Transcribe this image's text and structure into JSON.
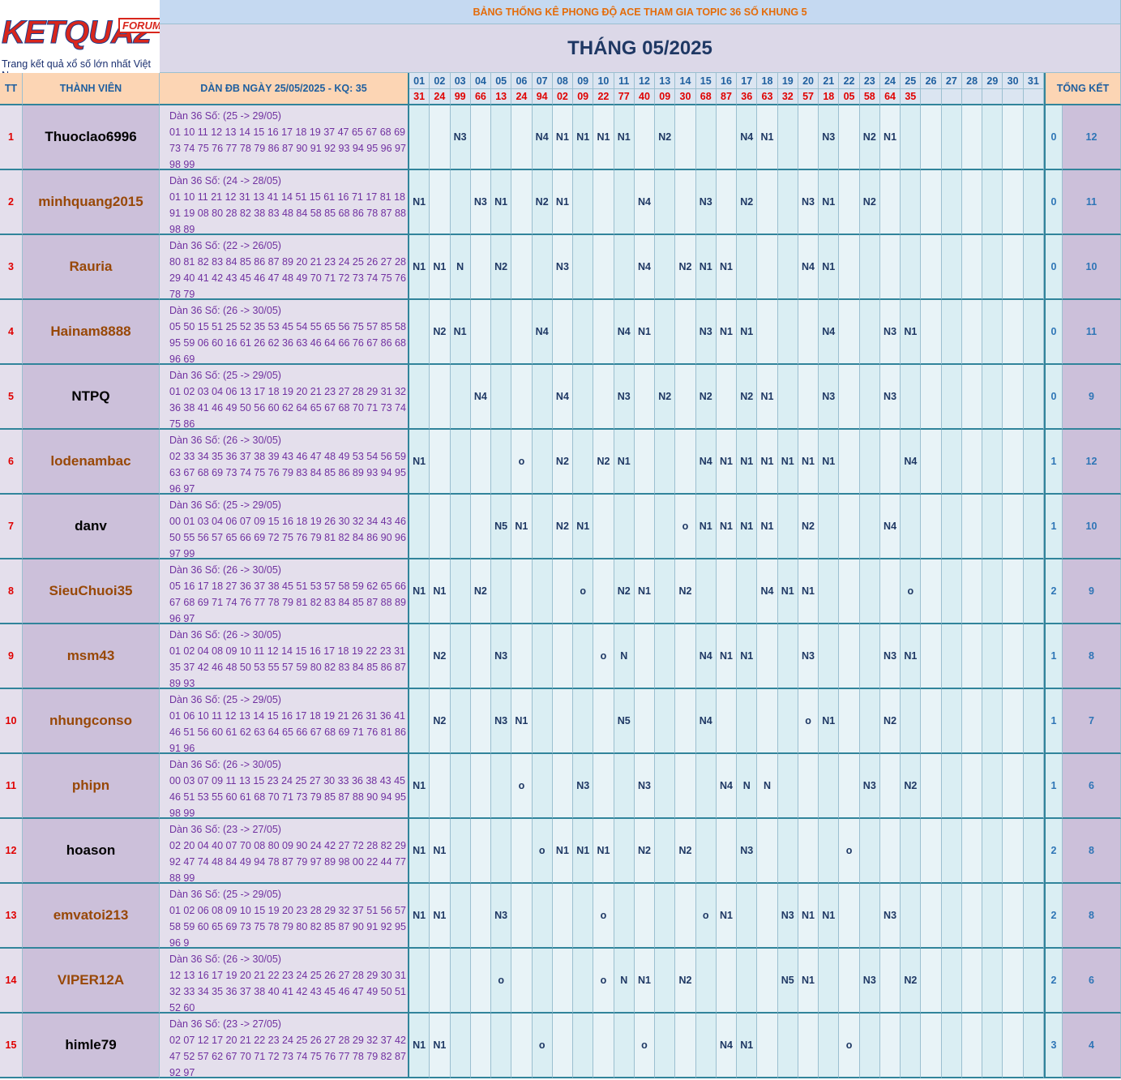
{
  "logo": {
    "brand": "KETQUA2",
    "badge": "FORUM",
    "tagline": "Trang kết quả xổ số lớn nhất Việt Nam"
  },
  "header": {
    "banner": "BẢNG THỐNG KÊ PHONG ĐỘ ACE THAM GIA TOPIC 36 SỐ KHUNG 5",
    "month": "THÁNG 05/2025",
    "col_tt": "TT",
    "col_member": "THÀNH VIÊN",
    "col_dan": "DÀN ĐB NGÀY 25/05/2025 - KQ: 35",
    "col_total": "TỔNG KẾT"
  },
  "days": [
    "01",
    "02",
    "03",
    "04",
    "05",
    "06",
    "07",
    "08",
    "09",
    "10",
    "11",
    "12",
    "13",
    "14",
    "15",
    "16",
    "17",
    "18",
    "19",
    "20",
    "21",
    "22",
    "23",
    "24",
    "25",
    "26",
    "27",
    "28",
    "29",
    "30",
    "31"
  ],
  "results": [
    "31",
    "24",
    "99",
    "66",
    "13",
    "24",
    "94",
    "02",
    "09",
    "22",
    "77",
    "40",
    "09",
    "30",
    "68",
    "87",
    "36",
    "63",
    "32",
    "57",
    "18",
    "05",
    "58",
    "64",
    "35",
    null,
    null,
    null,
    null,
    null,
    null
  ],
  "members": [
    {
      "tt": 1,
      "name": "Thuoclao6996",
      "name_color": "#000000",
      "dan": [
        "Dàn 36 Số: (25 -> 29/05)",
        "01 10 11 12 13 14 15 16 17 18 19 37 47 65 67 68 69",
        "73 74 75 76 77 78 79 86 87 90 91 92 93 94 95 96 97",
        "98 99"
      ],
      "marks": [
        null,
        null,
        "N3",
        null,
        null,
        null,
        "N4",
        "N1",
        "N1",
        "N1",
        "N1",
        null,
        "N2",
        null,
        null,
        null,
        "N4",
        "N1",
        null,
        null,
        "N3",
        null,
        "N2",
        "N1",
        null,
        null,
        null,
        null,
        null,
        null,
        null
      ],
      "total_a": 0,
      "total_b": 12
    },
    {
      "tt": 2,
      "name": "minhquang2015",
      "name_color": "#984807",
      "dan": [
        "Dàn 36 Số: (24 -> 28/05)",
        "01 10 11 21 12 31 13 41 14 51 15 61 16 71 17 81 18",
        "91 19 08 80 28 82 38 83 48 84 58 85 68 86 78 87 88",
        "98 89"
      ],
      "marks": [
        "N1",
        null,
        null,
        "N3",
        "N1",
        null,
        "N2",
        "N1",
        null,
        null,
        null,
        "N4",
        null,
        null,
        "N3",
        null,
        "N2",
        null,
        null,
        "N3",
        "N1",
        null,
        "N2",
        null,
        null,
        null,
        null,
        null,
        null,
        null,
        null
      ],
      "total_a": 0,
      "total_b": 11
    },
    {
      "tt": 3,
      "name": "Rauria",
      "name_color": "#984807",
      "dan": [
        "Dàn 36 Số: (22 -> 26/05)",
        "80 81 82 83 84 85 86 87 89 20 21 23 24 25 26 27 28",
        "29 40 41 42 43 45 46 47 48 49 70 71 72 73 74 75 76",
        "78 79"
      ],
      "marks": [
        "N1",
        "N1",
        "N",
        null,
        "N2",
        null,
        null,
        "N3",
        null,
        null,
        null,
        "N4",
        null,
        "N2",
        "N1",
        "N1",
        null,
        null,
        null,
        "N4",
        "N1",
        null,
        null,
        null,
        null,
        null,
        null,
        null,
        null,
        null,
        null
      ],
      "total_a": 0,
      "total_b": 10
    },
    {
      "tt": 4,
      "name": "Hainam8888",
      "name_color": "#984807",
      "dan": [
        "Dàn 36 Số: (26 -> 30/05)",
        "05 50 15 51 25 52 35 53 45 54 55 65 56 75 57 85 58",
        "95 59 06 60 16 61 26 62 36 63 46 64 66 76 67 86 68",
        "96 69"
      ],
      "marks": [
        null,
        "N2",
        "N1",
        null,
        null,
        null,
        "N4",
        null,
        null,
        null,
        "N4",
        "N1",
        null,
        null,
        "N3",
        "N1",
        "N1",
        null,
        null,
        null,
        "N4",
        null,
        null,
        "N3",
        "N1",
        null,
        null,
        null,
        null,
        null,
        null
      ],
      "total_a": 0,
      "total_b": 11
    },
    {
      "tt": 5,
      "name": "NTPQ",
      "name_color": "#000000",
      "dan": [
        "Dàn 36 Số: (25 -> 29/05)",
        "01 02 03 04 06 13 17 18 19 20 21 23 27 28 29 31 32",
        "36 38 41 46 49 50 56 60 62 64 65 67 68 70 71 73 74",
        "75 86"
      ],
      "marks": [
        null,
        null,
        null,
        "N4",
        null,
        null,
        null,
        "N4",
        null,
        null,
        "N3",
        null,
        "N2",
        null,
        "N2",
        null,
        "N2",
        "N1",
        null,
        null,
        "N3",
        null,
        null,
        "N3",
        null,
        null,
        null,
        null,
        null,
        null,
        null
      ],
      "total_a": 0,
      "total_b": 9
    },
    {
      "tt": 6,
      "name": "lodenambac",
      "name_color": "#984807",
      "dan": [
        "Dàn 36 Số: (26 -> 30/05)",
        "02 33 34 35 36 37 38 39 43 46 47 48 49 53 54 56 59",
        "63 67 68 69 73 74 75 76 79 83 84 85 86 89 93 94 95",
        "96 97"
      ],
      "marks": [
        "N1",
        null,
        null,
        null,
        null,
        "o",
        null,
        "N2",
        null,
        "N2",
        "N1",
        null,
        null,
        null,
        "N4",
        "N1",
        "N1",
        "N1",
        "N1",
        "N1",
        "N1",
        null,
        null,
        null,
        "N4",
        null,
        null,
        null,
        null,
        null,
        null
      ],
      "total_a": 1,
      "total_b": 12
    },
    {
      "tt": 7,
      "name": "danv",
      "name_color": "#000000",
      "dan": [
        "Dàn 36 Số: (25 -> 29/05)",
        "00 01 03 04 06 07 09 15 16 18 19 26 30 32 34 43 46",
        "50 55 56 57 65 66 69 72 75 76 79 81 82 84 86 90 96",
        "97 99"
      ],
      "marks": [
        null,
        null,
        null,
        null,
        "N5",
        "N1",
        null,
        "N2",
        "N1",
        null,
        null,
        null,
        null,
        "o",
        "N1",
        "N1",
        "N1",
        "N1",
        null,
        "N2",
        null,
        null,
        null,
        "N4",
        null,
        null,
        null,
        null,
        null,
        null,
        null
      ],
      "total_a": 1,
      "total_b": 10
    },
    {
      "tt": 8,
      "name": "SieuChuoi35",
      "name_color": "#984807",
      "dan": [
        "Dàn 36 Số: (26 -> 30/05)",
        "05 16 17 18 27 36 37 38 45 51 53 57 58 59 62 65 66",
        "67 68 69 71 74 76 77 78 79 81 82 83 84 85 87 88 89",
        "96 97"
      ],
      "marks": [
        "N1",
        "N1",
        null,
        "N2",
        null,
        null,
        null,
        null,
        "o",
        null,
        "N2",
        "N1",
        null,
        "N2",
        null,
        null,
        null,
        "N4",
        "N1",
        "N1",
        null,
        null,
        null,
        null,
        "o",
        null,
        null,
        null,
        null,
        null,
        null
      ],
      "total_a": 2,
      "total_b": 9
    },
    {
      "tt": 9,
      "name": "msm43",
      "name_color": "#984807",
      "dan": [
        "Dàn 36 Số: (26 -> 30/05)",
        "01 02 04 08 09 10 11 12 14 15 16 17 18 19 22 23 31",
        "35 37 42 46 48 50 53 55 57 59 80 82 83 84 85 86 87",
        "89 93"
      ],
      "marks": [
        null,
        "N2",
        null,
        null,
        "N3",
        null,
        null,
        null,
        null,
        "o",
        "N",
        null,
        null,
        null,
        "N4",
        "N1",
        "N1",
        null,
        null,
        "N3",
        null,
        null,
        null,
        "N3",
        "N1",
        null,
        null,
        null,
        null,
        null,
        null
      ],
      "total_a": 1,
      "total_b": 8
    },
    {
      "tt": 10,
      "name": "nhungconso",
      "name_color": "#984807",
      "dan": [
        "Dàn 36 Số: (25 -> 29/05)",
        "01 06 10 11 12 13 14 15 16 17 18 19 21 26 31 36 41",
        "46 51 56 60 61 62 63 64 65 66 67 68 69 71 76 81 86",
        "91 96"
      ],
      "marks": [
        null,
        "N2",
        null,
        null,
        "N3",
        "N1",
        null,
        null,
        null,
        null,
        "N5",
        null,
        null,
        null,
        "N4",
        null,
        null,
        null,
        null,
        "o",
        "N1",
        null,
        null,
        "N2",
        null,
        null,
        null,
        null,
        null,
        null,
        null
      ],
      "total_a": 1,
      "total_b": 7
    },
    {
      "tt": 11,
      "name": "phipn",
      "name_color": "#984807",
      "dan": [
        "Dàn 36 Số: (26 -> 30/05)",
        "00 03 07 09 11 13 15 23 24 25 27 30 33 36 38 43 45",
        "46 51 53 55 60 61 68 70 71 73 79 85 87 88 90 94 95",
        "98 99"
      ],
      "marks": [
        "N1",
        null,
        null,
        null,
        null,
        "o",
        null,
        null,
        "N3",
        null,
        null,
        "N3",
        null,
        null,
        null,
        "N4",
        "N",
        "N",
        null,
        null,
        null,
        null,
        "N3",
        null,
        "N2",
        null,
        null,
        null,
        null,
        null,
        null
      ],
      "total_a": 1,
      "total_b": 6
    },
    {
      "tt": 12,
      "name": "hoason",
      "name_color": "#000000",
      "dan": [
        "Dàn 36 Số: (23 -> 27/05)",
        "02 20 04 40 07 70 08 80 09 90 24 42 27 72 28 82 29",
        "92 47 74 48 84 49 94 78 87 79 97 89 98 00 22 44 77",
        "88 99"
      ],
      "marks": [
        "N1",
        "N1",
        null,
        null,
        null,
        null,
        "o",
        "N1",
        "N1",
        "N1",
        null,
        "N2",
        null,
        "N2",
        null,
        null,
        "N3",
        null,
        null,
        null,
        null,
        "o",
        null,
        null,
        null,
        null,
        null,
        null,
        null,
        null,
        null
      ],
      "total_a": 2,
      "total_b": 8
    },
    {
      "tt": 13,
      "name": "emvatoi213",
      "name_color": "#984807",
      "dan": [
        "Dàn 36 Số: (25 -> 29/05)",
        "01 02 06 08 09 10 15 19 20 23 28 29 32 37 51 56 57",
        "58 59 60 65 69 73 75 78 79 80 82 85 87 90 91 92 95",
        "96 9"
      ],
      "marks": [
        "N1",
        "N1",
        null,
        null,
        "N3",
        null,
        null,
        null,
        null,
        "o",
        null,
        null,
        null,
        null,
        "o",
        "N1",
        null,
        null,
        "N3",
        "N1",
        "N1",
        null,
        null,
        "N3",
        null,
        null,
        null,
        null,
        null,
        null,
        null
      ],
      "total_a": 2,
      "total_b": 8
    },
    {
      "tt": 14,
      "name": "VIPER12A",
      "name_color": "#984807",
      "dan": [
        "Dàn 36 Số: (26 -> 30/05)",
        "12 13 16 17 19 20 21 22 23 24 25 26 27 28 29 30 31",
        "32 33 34 35 36 37 38 40 41 42 43 45 46 47 49 50 51",
        "52 60"
      ],
      "marks": [
        null,
        null,
        null,
        null,
        "o",
        null,
        null,
        null,
        null,
        "o",
        "N",
        "N1",
        null,
        "N2",
        null,
        null,
        null,
        null,
        "N5",
        "N1",
        null,
        null,
        "N3",
        null,
        "N2",
        null,
        null,
        null,
        null,
        null,
        null
      ],
      "total_a": 2,
      "total_b": 6
    },
    {
      "tt": 15,
      "name": "himle79",
      "name_color": "#000000",
      "dan": [
        "Dàn 36 Số: (23 -> 27/05)",
        "02 07 12 17 20 21 22 23 24 25 26 27 28 29 32 37 42",
        "47 52 57 62 67 70 71 72 73 74 75 76 77 78 79 82 87",
        "92 97"
      ],
      "marks": [
        "N1",
        "N1",
        null,
        null,
        null,
        null,
        "o",
        null,
        null,
        null,
        null,
        "o",
        null,
        null,
        null,
        "N4",
        "N1",
        null,
        null,
        null,
        null,
        "o",
        null,
        null,
        null,
        null,
        null,
        null,
        null,
        null,
        null
      ],
      "total_a": 3,
      "total_b": 4
    }
  ]
}
